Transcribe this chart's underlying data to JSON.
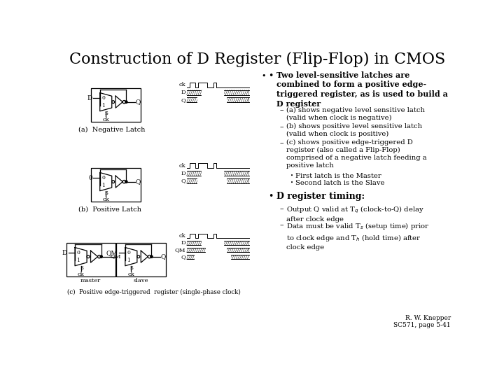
{
  "title": "Construction of D Register (Flip-Flop) in CMOS",
  "title_fontsize": 16,
  "bg_color": "#ffffff",
  "text_color": "#000000",
  "bullet1_bold": "Two level-sensitive latches are\ncombined to form a positive edge-\ntriggered register, as is used to build a\nD register",
  "sub1a": "(a) shows negative level sensitive latch\n(valid when clock is negative)",
  "sub1b": "(b) shows positive level sensitive latch\n(valid when clock is positive)",
  "sub1c": "(c) shows positive edge-triggered D\nregister (also called a Flip-Flop)\ncomprised of a negative latch feeding a\npositive latch",
  "sub1c1": "First latch is the Master",
  "sub1c2": "Second latch is the Slave",
  "bullet2_bold": "D register timing:",
  "sub2a_proper": "Output Q valid at T$_q$ (clock-to-Q) delay\nafter clock edge",
  "sub2b_proper": "Data must be valid T$_s$ (setup time) prior\nto clock edge and T$_h$ (hold time) after\nclock edge",
  "footer": "R. W. Knepper\nSC571, page 5-41",
  "caption_a": "(a)  Negative Latch",
  "caption_b": "(b)  Positive Latch",
  "caption_c": "(c)  Positive edge-triggered  register (single-phase clock)"
}
